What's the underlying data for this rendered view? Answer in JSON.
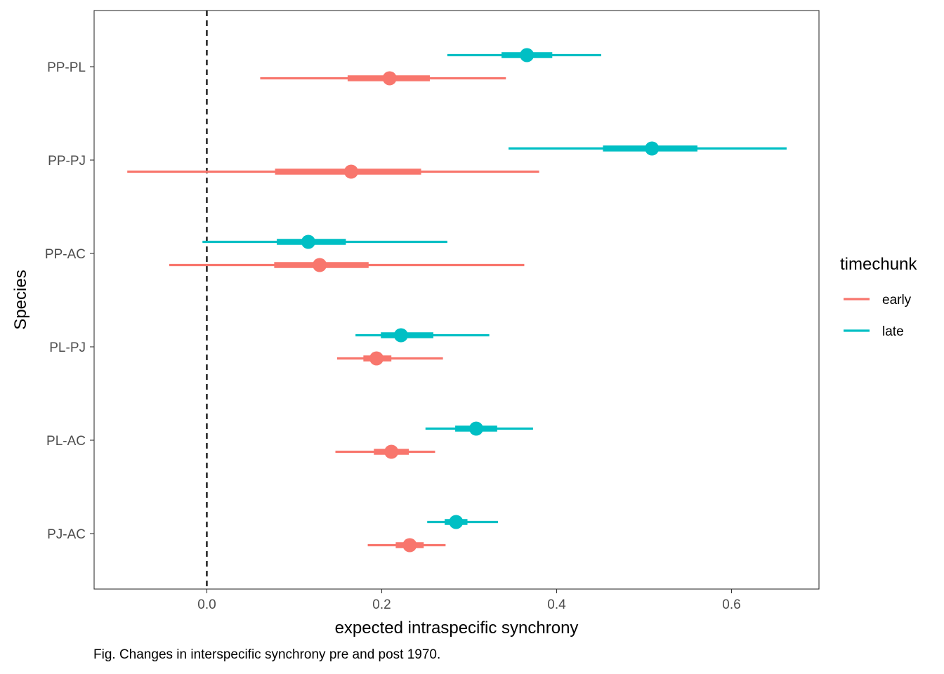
{
  "chart_data": {
    "type": "pointrange",
    "xlabel": "expected intraspecific synchrony",
    "ylabel": "Species",
    "xlim": [
      -0.128,
      0.7
    ],
    "xticks": [
      0.0,
      0.2,
      0.4,
      0.6
    ],
    "xtick_labels": [
      "0.0",
      "0.2",
      "0.4",
      "0.6"
    ],
    "reference_line": {
      "x": 0,
      "style": "dashed"
    },
    "categories": [
      "PP-PL",
      "PP-PJ",
      "PP-AC",
      "PL-PJ",
      "PL-AC",
      "PJ-AC"
    ],
    "legend": {
      "title": "timechunk",
      "placement": "right",
      "entries": [
        {
          "label": "early",
          "color": "#F8766D"
        },
        {
          "label": "late",
          "color": "#00BFC4"
        }
      ]
    },
    "series": [
      {
        "name": "early",
        "color": "#F8766D",
        "points": [
          {
            "category": "PP-PL",
            "estimate": 0.209,
            "inner": [
              0.161,
              0.255
            ],
            "outer": [
              0.061,
              0.342
            ]
          },
          {
            "category": "PP-PJ",
            "estimate": 0.165,
            "inner": [
              0.078,
              0.245
            ],
            "outer": [
              -0.091,
              0.38
            ]
          },
          {
            "category": "PP-AC",
            "estimate": 0.129,
            "inner": [
              0.077,
              0.185
            ],
            "outer": [
              -0.043,
              0.363
            ]
          },
          {
            "category": "PL-PJ",
            "estimate": 0.194,
            "inner": [
              0.179,
              0.211
            ],
            "outer": [
              0.149,
              0.27
            ]
          },
          {
            "category": "PL-AC",
            "estimate": 0.211,
            "inner": [
              0.191,
              0.231
            ],
            "outer": [
              0.147,
              0.261
            ]
          },
          {
            "category": "PJ-AC",
            "estimate": 0.232,
            "inner": [
              0.216,
              0.248
            ],
            "outer": [
              0.184,
              0.273
            ]
          }
        ]
      },
      {
        "name": "late",
        "color": "#00BFC4",
        "points": [
          {
            "category": "PP-PL",
            "estimate": 0.366,
            "inner": [
              0.337,
              0.395
            ],
            "outer": [
              0.275,
              0.451
            ]
          },
          {
            "category": "PP-PJ",
            "estimate": 0.509,
            "inner": [
              0.453,
              0.561
            ],
            "outer": [
              0.345,
              0.663
            ]
          },
          {
            "category": "PP-AC",
            "estimate": 0.116,
            "inner": [
              0.08,
              0.159
            ],
            "outer": [
              -0.005,
              0.275
            ]
          },
          {
            "category": "PL-PJ",
            "estimate": 0.222,
            "inner": [
              0.199,
              0.259
            ],
            "outer": [
              0.17,
              0.323
            ]
          },
          {
            "category": "PL-AC",
            "estimate": 0.308,
            "inner": [
              0.284,
              0.332
            ],
            "outer": [
              0.25,
              0.373
            ]
          },
          {
            "category": "PJ-AC",
            "estimate": 0.285,
            "inner": [
              0.272,
              0.298
            ],
            "outer": [
              0.252,
              0.333
            ]
          }
        ]
      }
    ],
    "caption": "Fig. Changes in interspecific synchrony pre and post 1970."
  }
}
